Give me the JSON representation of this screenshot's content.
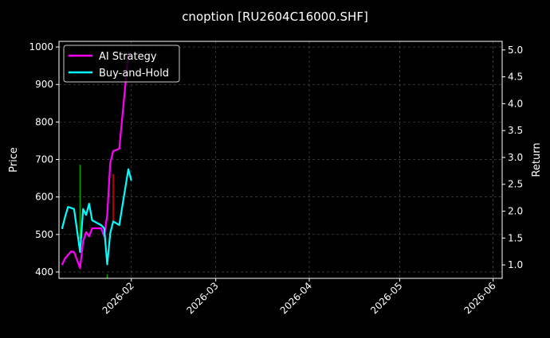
{
  "chart_data": {
    "type": "line",
    "title": "cnoption [RU2604C16000.SHF]",
    "ylabel": "Price",
    "y2label": "Return",
    "xlim": [
      "2026-01-08",
      "2026-06-04"
    ],
    "ylim": [
      383,
      1015
    ],
    "y2lim": [
      0.75,
      5.16
    ],
    "grid": true,
    "legend_placement": "top-left",
    "x_ticks": [
      "2026-02-01",
      "2026-03-01",
      "2026-04-01",
      "2026-05-01",
      "2026-06-01"
    ],
    "x_tick_labels": [
      "2026-02",
      "2026-03",
      "2026-04",
      "2026-05",
      "2026-06"
    ],
    "y_ticks": [
      400,
      500,
      600,
      700,
      800,
      900,
      1000
    ],
    "y2_ticks": [
      "1.0",
      "1.5",
      "2.0",
      "2.5",
      "3.0",
      "3.5",
      "4.0",
      "4.5",
      "5.0"
    ],
    "series": [
      {
        "name": "AI Strategy",
        "axis": "right",
        "color": "#ff00ff",
        "x": [
          "2026-01-09",
          "2026-01-10",
          "2026-01-12",
          "2026-01-13",
          "2026-01-15",
          "2026-01-16",
          "2026-01-17",
          "2026-01-18",
          "2026-01-19",
          "2026-01-22",
          "2026-01-23",
          "2026-01-24",
          "2026-01-25",
          "2026-01-26",
          "2026-01-28",
          "2026-01-31"
        ],
        "y": [
          1.0,
          1.12,
          1.25,
          1.24,
          0.94,
          1.44,
          1.61,
          1.53,
          1.68,
          1.68,
          1.53,
          1.93,
          2.9,
          3.12,
          3.16,
          4.93
        ]
      },
      {
        "name": "Buy-and-Hold",
        "axis": "right",
        "color": "#00ffff",
        "x": [
          "2026-01-09",
          "2026-01-10",
          "2026-01-11",
          "2026-01-13",
          "2026-01-15",
          "2026-01-16",
          "2026-01-17",
          "2026-01-18",
          "2026-01-19",
          "2026-01-22",
          "2026-01-23",
          "2026-01-24",
          "2026-01-25",
          "2026-01-26",
          "2026-01-28",
          "2026-01-31",
          "2026-02-01"
        ],
        "y": [
          1.67,
          1.89,
          2.08,
          2.04,
          1.24,
          2.04,
          1.93,
          2.14,
          1.83,
          1.74,
          1.68,
          1.01,
          1.59,
          1.81,
          1.74,
          2.78,
          2.57
        ]
      }
    ],
    "candles": [
      {
        "x": "2026-01-15",
        "low": 489,
        "high": 686,
        "color": "#00aa00"
      },
      {
        "x": "2026-01-24",
        "low": 380,
        "high": 394,
        "color": "#00aa00"
      },
      {
        "x": "2026-01-26",
        "low": 532,
        "high": 661,
        "color": "#dd0000"
      }
    ]
  }
}
